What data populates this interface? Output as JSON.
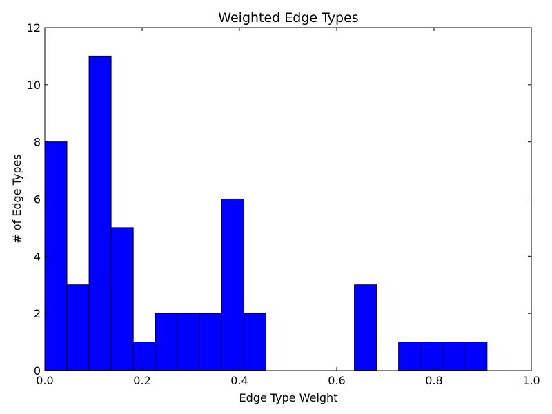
{
  "chart_data": {
    "type": "bar",
    "title": "Weighted Edge Types",
    "xlabel": "Edge Type Weight",
    "ylabel": "# of Edge Types",
    "xlim": [
      0.0,
      1.0
    ],
    "ylim": [
      0,
      12
    ],
    "grid": false,
    "bar_color": "#0000ff",
    "edge_color": "#000000",
    "x_ticks": [
      "0.0",
      "0.2",
      "0.4",
      "0.6",
      "0.8",
      "1.0"
    ],
    "y_ticks": [
      "0",
      "2",
      "4",
      "6",
      "8",
      "10",
      "12"
    ],
    "bins": [
      {
        "x0": 0.0,
        "x1": 0.0454,
        "value": 8
      },
      {
        "x0": 0.0454,
        "x1": 0.0909,
        "value": 3
      },
      {
        "x0": 0.0909,
        "x1": 0.1363,
        "value": 11
      },
      {
        "x0": 0.1363,
        "x1": 0.1818,
        "value": 5
      },
      {
        "x0": 0.1818,
        "x1": 0.2272,
        "value": 1
      },
      {
        "x0": 0.2272,
        "x1": 0.2727,
        "value": 2
      },
      {
        "x0": 0.2727,
        "x1": 0.3181,
        "value": 2
      },
      {
        "x0": 0.3181,
        "x1": 0.3636,
        "value": 2
      },
      {
        "x0": 0.3636,
        "x1": 0.409,
        "value": 6
      },
      {
        "x0": 0.409,
        "x1": 0.4545,
        "value": 2
      },
      {
        "x0": 0.4545,
        "x1": 0.4999,
        "value": 0
      },
      {
        "x0": 0.4999,
        "x1": 0.5454,
        "value": 0
      },
      {
        "x0": 0.5454,
        "x1": 0.5908,
        "value": 0
      },
      {
        "x0": 0.5908,
        "x1": 0.6363,
        "value": 0
      },
      {
        "x0": 0.6363,
        "x1": 0.6817,
        "value": 3
      },
      {
        "x0": 0.6817,
        "x1": 0.7272,
        "value": 0
      },
      {
        "x0": 0.7272,
        "x1": 0.7726,
        "value": 1
      },
      {
        "x0": 0.7726,
        "x1": 0.8181,
        "value": 1
      },
      {
        "x0": 0.8181,
        "x1": 0.8635,
        "value": 1
      },
      {
        "x0": 0.8635,
        "x1": 0.909,
        "value": 1
      }
    ]
  }
}
